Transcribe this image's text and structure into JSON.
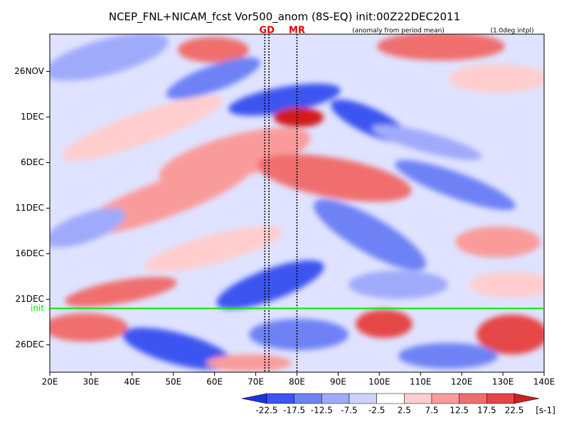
{
  "chart_data": {
    "type": "hovmoller",
    "title": "NCEP_FNL+NICAM_fcst Vor500_anom (8S-EQ) init:00Z22DEC2011",
    "subtitles": [
      "(anomaly from period mean)",
      "(1.0deg intpl)"
    ],
    "xlim": [
      20,
      140
    ],
    "xticks": [
      {
        "value": 20,
        "label": "20E"
      },
      {
        "value": 30,
        "label": "30E"
      },
      {
        "value": 40,
        "label": "40E"
      },
      {
        "value": 50,
        "label": "50E"
      },
      {
        "value": 60,
        "label": "60E"
      },
      {
        "value": 70,
        "label": "70E"
      },
      {
        "value": 80,
        "label": "80E"
      },
      {
        "value": 90,
        "label": "90E"
      },
      {
        "value": 100,
        "label": "100E"
      },
      {
        "value": 110,
        "label": "110E"
      },
      {
        "value": 120,
        "label": "120E"
      },
      {
        "value": 130,
        "label": "130E"
      },
      {
        "value": 140,
        "label": "140E"
      }
    ],
    "ylim": [
      21.9,
      59
    ],
    "yticks": [
      {
        "value": 26,
        "label": "26NOV"
      },
      {
        "value": 31,
        "label": "1DEC"
      },
      {
        "value": 36,
        "label": "6DEC"
      },
      {
        "value": 41,
        "label": "11DEC"
      },
      {
        "value": 46,
        "label": "16DEC"
      },
      {
        "value": 51,
        "label": "21DEC"
      },
      {
        "value": 56,
        "label": "26DEC"
      }
    ],
    "markers": [
      {
        "label": "GD",
        "lons": [
          72.2,
          73.2
        ]
      },
      {
        "label": "MR",
        "lons": [
          80
        ]
      }
    ],
    "marker_color": "#e00000",
    "init": {
      "label": "init",
      "day": 52,
      "color": "#00ee00"
    },
    "colorbar": {
      "levels": [
        -22.5,
        -17.5,
        -12.5,
        -7.5,
        -2.5,
        2.5,
        7.5,
        12.5,
        17.5,
        22.5
      ],
      "colors": [
        "#1e32dc",
        "#3c55f0",
        "#6e82f5",
        "#a0aafa",
        "#cdd2ff",
        "#ffffff",
        "#ffcdcd",
        "#fa9b9b",
        "#f06e6e",
        "#e64646",
        "#d21e1e"
      ],
      "unit": "[s-1]"
    }
  }
}
